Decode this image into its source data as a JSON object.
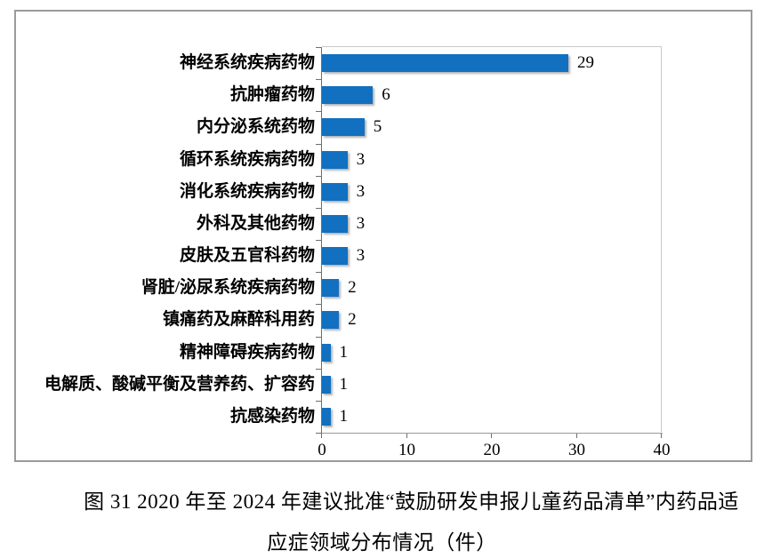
{
  "figure": {
    "caption_line1": "图 31  2020 年至 2024 年建议批准“鼓励研发申报儿童药品清单”内药品适",
    "caption_line2": "应症领域分布情况（件）"
  },
  "chart_data": {
    "type": "bar",
    "orientation": "horizontal",
    "title": "",
    "xlabel": "",
    "ylabel": "",
    "categories": [
      "神经系统疾病药物",
      "抗肿瘤药物",
      "内分泌系统药物",
      "循环系统疾病药物",
      "消化系统疾病药物",
      "外科及其他药物",
      "皮肤及五官科药物",
      "肾脏/泌尿系统疾病药物",
      "镇痛药及麻醉科用药",
      "精神障碍疾病药物",
      "电解质、酸碱平衡及营养药、扩容药",
      "抗感染药物"
    ],
    "values": [
      29,
      6,
      5,
      3,
      3,
      3,
      3,
      2,
      2,
      1,
      1,
      1
    ],
    "value_labels_shown": true,
    "xlim": [
      0,
      40
    ],
    "xticks": [
      0,
      10,
      20,
      30,
      40
    ],
    "grid": false,
    "legend": "none",
    "bar_color": "#1170c0",
    "axis_color": "#6e6e6e",
    "plot_border_color": "#c9c9c9",
    "frame_border_color": "#9a9a9a"
  }
}
